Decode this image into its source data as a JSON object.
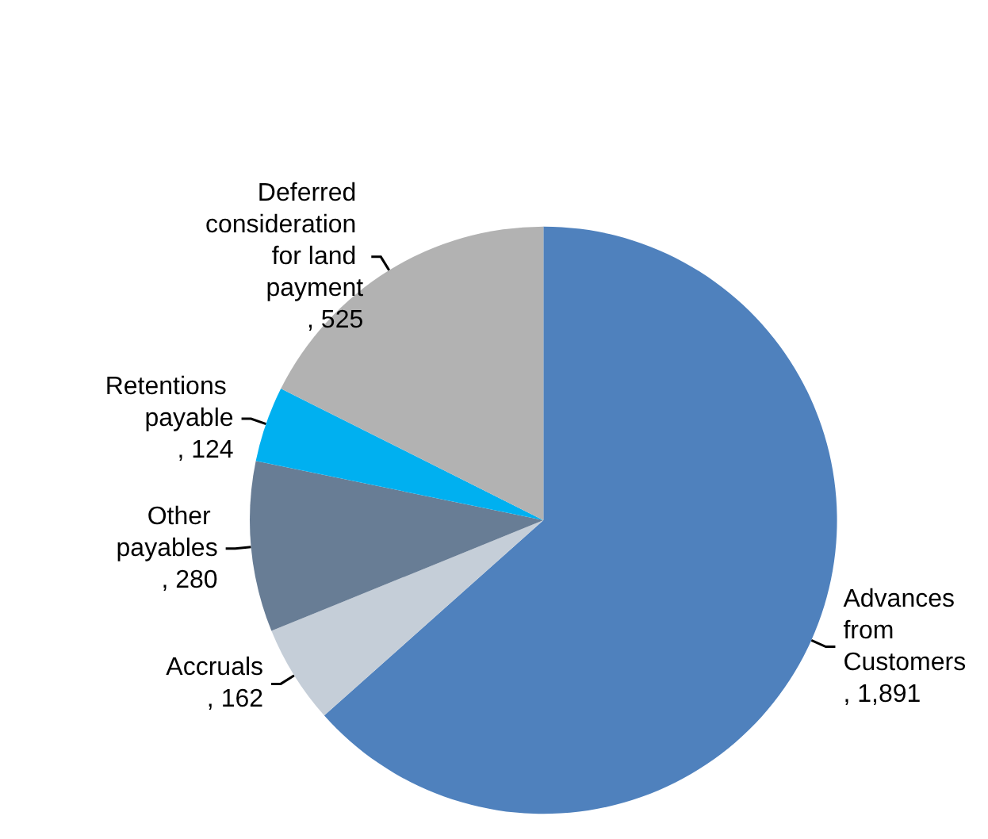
{
  "chart_data": {
    "type": "pie",
    "categories": [
      "Advances from Customers",
      "Accruals",
      "Other payables",
      "Retentions payable",
      "Deferred consideration for land payment"
    ],
    "values": [
      1891,
      162,
      280,
      124,
      525
    ],
    "colors": [
      "#4f81bd",
      "#c5ced8",
      "#687d95",
      "#00b0f0",
      "#b2b2b2"
    ],
    "value_labels": [
      ", 1,891",
      ", 162",
      ", 280",
      ", 124",
      ", 525"
    ],
    "legend": false
  }
}
